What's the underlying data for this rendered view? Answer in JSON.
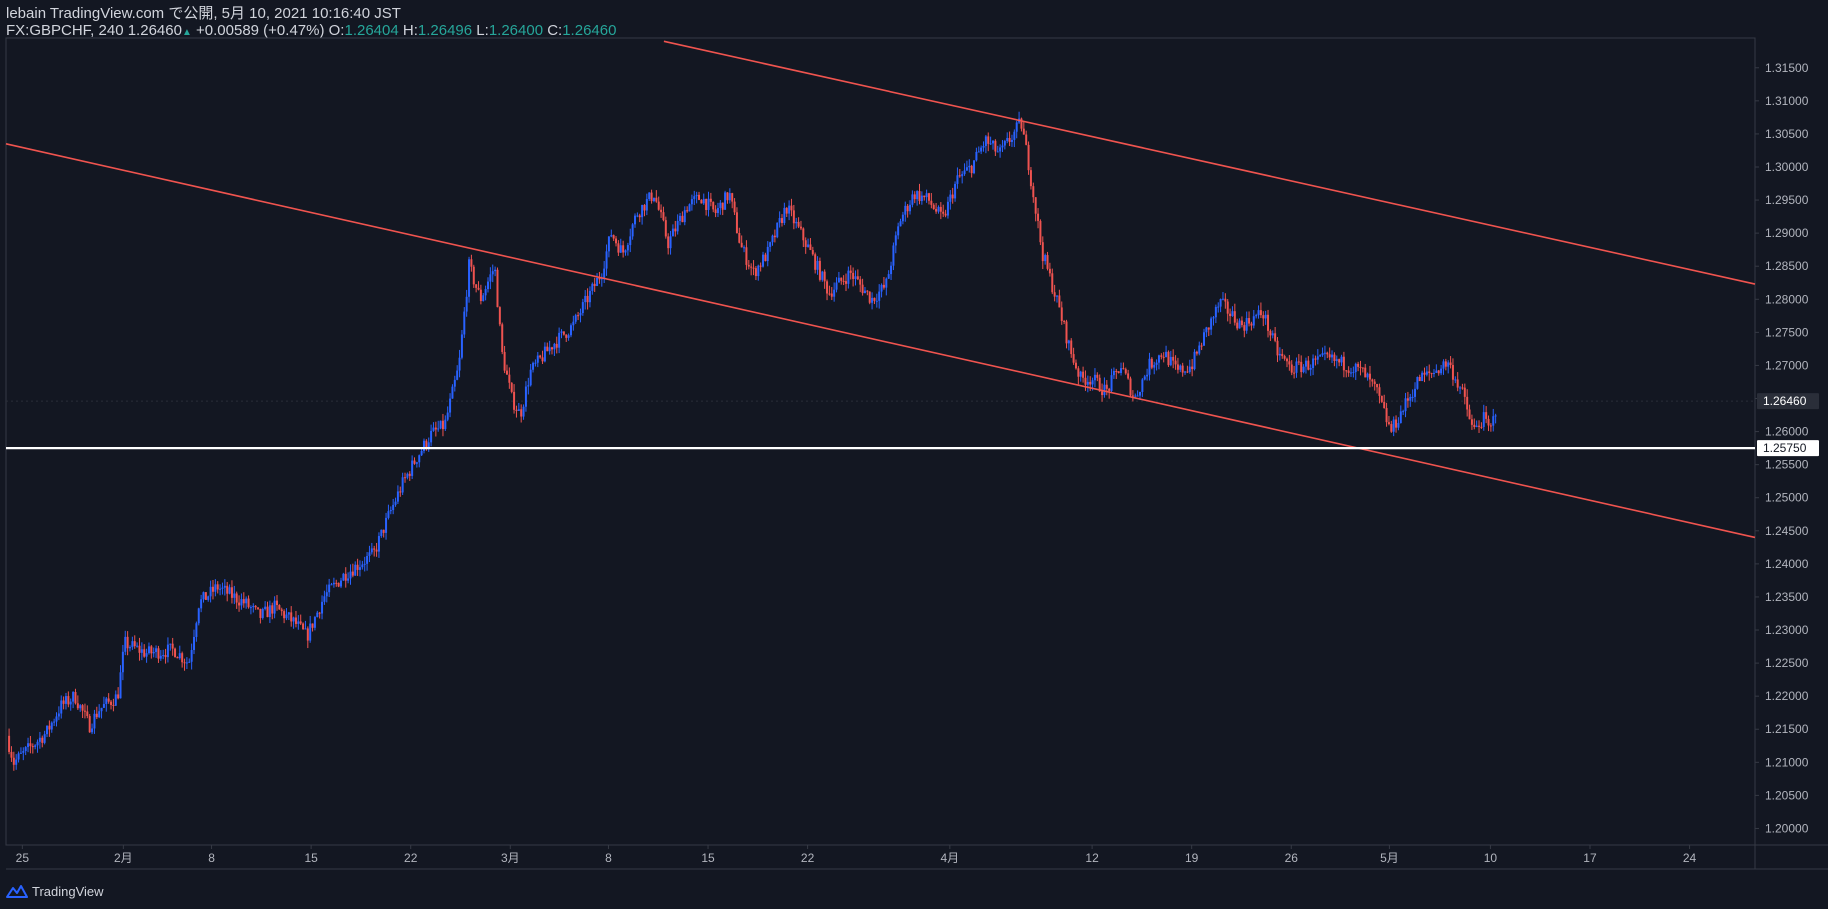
{
  "header": {
    "published_line": "lebain TradingView.com で公開, 5月 10, 2021 10:16:40 JST",
    "symbol": "FX:GBPCHF, 240",
    "last": "1.26460",
    "change": "+0.00589 (+0.47%)",
    "o_label": "O:",
    "o": "1.26404",
    "h_label": "H:",
    "h": "1.26496",
    "l_label": "L:",
    "l": "1.26400",
    "c_label": "C:",
    "c": "1.26460"
  },
  "footer": {
    "brand": "TradingView"
  },
  "colors": {
    "background": "#131722",
    "up": "#2962ff",
    "down": "#ef5350",
    "trendline": "#f0544f",
    "hline": "#ffffff",
    "axis_text": "#b2b5be",
    "header_value": "#26a69a"
  },
  "chart_data": {
    "type": "candlestick",
    "symbol": "FX:GBPCHF",
    "interval": "240",
    "ylim": [
      1.1975,
      1.3195
    ],
    "y_ticks": [
      "1.20000",
      "1.20500",
      "1.21000",
      "1.21500",
      "1.22000",
      "1.22500",
      "1.23000",
      "1.23500",
      "1.24000",
      "1.24500",
      "1.25000",
      "1.25500",
      "1.26000",
      "1.26500",
      "1.27000",
      "1.27500",
      "1.28000",
      "1.28500",
      "1.29000",
      "1.29500",
      "1.30000",
      "1.30500",
      "1.31000",
      "1.31500"
    ],
    "x_ticks": [
      {
        "label": "25",
        "day": -0.2
      },
      {
        "label": "2月",
        "day": 6.9
      },
      {
        "label": "8",
        "day": 13.1
      },
      {
        "label": "15",
        "day": 20.1
      },
      {
        "label": "22",
        "day": 27.1
      },
      {
        "label": "3月",
        "day": 34.1
      },
      {
        "label": "8",
        "day": 41.0
      },
      {
        "label": "15",
        "day": 48.0
      },
      {
        "label": "22",
        "day": 55.0
      },
      {
        "label": "4月",
        "day": 65.0
      },
      {
        "label": "12",
        "day": 75.0
      },
      {
        "label": "19",
        "day": 82.0
      },
      {
        "label": "26",
        "day": 89.0
      },
      {
        "label": "5月",
        "day": 95.9
      },
      {
        "label": "10",
        "day": 103.0
      },
      {
        "label": "17",
        "day": 110.0
      },
      {
        "label": "24",
        "day": 117.0
      }
    ],
    "x_domain_days": [
      -1.35,
      121.6
    ],
    "price_label": "1.26460",
    "horizontal_line": {
      "price": 1.2575,
      "label": "1.25750"
    },
    "trendlines": [
      {
        "p1": {
          "day": -1.35,
          "price": 1.3035
        },
        "p2": {
          "day": 121.6,
          "price": 1.244
        }
      },
      {
        "p1": {
          "day": 44.9,
          "price": 1.319
        },
        "p2": {
          "day": 121.6,
          "price": 1.2823
        }
      }
    ],
    "path_points": [
      {
        "day": -1.3,
        "price": 1.214
      },
      {
        "day": -0.8,
        "price": 1.21
      },
      {
        "day": 1.5,
        "price": 1.2145
      },
      {
        "day": 2.5,
        "price": 1.2185
      },
      {
        "day": 3.5,
        "price": 1.22
      },
      {
        "day": 4.5,
        "price": 1.2155
      },
      {
        "day": 5.2,
        "price": 1.218
      },
      {
        "day": 6.5,
        "price": 1.22
      },
      {
        "day": 7.0,
        "price": 1.228
      },
      {
        "day": 8.5,
        "price": 1.2265
      },
      {
        "day": 10.5,
        "price": 1.227
      },
      {
        "day": 11.5,
        "price": 1.225
      },
      {
        "day": 12.2,
        "price": 1.234
      },
      {
        "day": 13.5,
        "price": 1.2365
      },
      {
        "day": 15.5,
        "price": 1.234
      },
      {
        "day": 16.5,
        "price": 1.232
      },
      {
        "day": 17.5,
        "price": 1.2335
      },
      {
        "day": 19.0,
        "price": 1.231
      },
      {
        "day": 19.8,
        "price": 1.229
      },
      {
        "day": 21.0,
        "price": 1.235
      },
      {
        "day": 22.5,
        "price": 1.2385
      },
      {
        "day": 24.5,
        "price": 1.2415
      },
      {
        "day": 25.5,
        "price": 1.247
      },
      {
        "day": 26.5,
        "price": 1.252
      },
      {
        "day": 27.5,
        "price": 1.256
      },
      {
        "day": 28.5,
        "price": 1.2595
      },
      {
        "day": 29.5,
        "price": 1.261
      },
      {
        "day": 30.5,
        "price": 1.27
      },
      {
        "day": 31.2,
        "price": 1.285
      },
      {
        "day": 32.0,
        "price": 1.28
      },
      {
        "day": 33.0,
        "price": 1.285
      },
      {
        "day": 33.5,
        "price": 1.272
      },
      {
        "day": 34.2,
        "price": 1.265
      },
      {
        "day": 34.8,
        "price": 1.2625
      },
      {
        "day": 35.5,
        "price": 1.269
      },
      {
        "day": 37.0,
        "price": 1.273
      },
      {
        "day": 38.5,
        "price": 1.276
      },
      {
        "day": 39.5,
        "price": 1.28
      },
      {
        "day": 40.5,
        "price": 1.284
      },
      {
        "day": 41.2,
        "price": 1.29
      },
      {
        "day": 42.0,
        "price": 1.287
      },
      {
        "day": 43.0,
        "price": 1.293
      },
      {
        "day": 44.2,
        "price": 1.296
      },
      {
        "day": 45.2,
        "price": 1.2885
      },
      {
        "day": 46.5,
        "price": 1.294
      },
      {
        "day": 47.5,
        "price": 1.2955
      },
      {
        "day": 48.5,
        "price": 1.293
      },
      {
        "day": 49.5,
        "price": 1.296
      },
      {
        "day": 50.3,
        "price": 1.288
      },
      {
        "day": 51.2,
        "price": 1.284
      },
      {
        "day": 52.2,
        "price": 1.287
      },
      {
        "day": 53.5,
        "price": 1.294
      },
      {
        "day": 55.0,
        "price": 1.288
      },
      {
        "day": 56.5,
        "price": 1.281
      },
      {
        "day": 58.0,
        "price": 1.284
      },
      {
        "day": 59.5,
        "price": 1.28
      },
      {
        "day": 60.5,
        "price": 1.282
      },
      {
        "day": 61.5,
        "price": 1.292
      },
      {
        "day": 62.5,
        "price": 1.296
      },
      {
        "day": 63.5,
        "price": 1.295
      },
      {
        "day": 64.5,
        "price": 1.292
      },
      {
        "day": 65.5,
        "price": 1.298
      },
      {
        "day": 66.5,
        "price": 1.3
      },
      {
        "day": 67.5,
        "price": 1.304
      },
      {
        "day": 68.5,
        "price": 1.302
      },
      {
        "day": 69.5,
        "price": 1.305
      },
      {
        "day": 70.0,
        "price": 1.3068
      },
      {
        "day": 70.5,
        "price": 1.301
      },
      {
        "day": 71.0,
        "price": 1.294
      },
      {
        "day": 71.5,
        "price": 1.287
      },
      {
        "day": 72.5,
        "price": 1.28
      },
      {
        "day": 73.5,
        "price": 1.272
      },
      {
        "day": 74.2,
        "price": 1.268
      },
      {
        "day": 75.0,
        "price": 1.268
      },
      {
        "day": 76.0,
        "price": 1.266
      },
      {
        "day": 77.0,
        "price": 1.27
      },
      {
        "day": 78.0,
        "price": 1.265
      },
      {
        "day": 79.0,
        "price": 1.27
      },
      {
        "day": 80.0,
        "price": 1.272
      },
      {
        "day": 81.0,
        "price": 1.269
      },
      {
        "day": 82.0,
        "price": 1.27
      },
      {
        "day": 83.0,
        "price": 1.275
      },
      {
        "day": 84.0,
        "price": 1.2795
      },
      {
        "day": 85.5,
        "price": 1.276
      },
      {
        "day": 87.0,
        "price": 1.278
      },
      {
        "day": 88.0,
        "price": 1.272
      },
      {
        "day": 89.0,
        "price": 1.2695
      },
      {
        "day": 90.0,
        "price": 1.27
      },
      {
        "day": 91.5,
        "price": 1.271
      },
      {
        "day": 93.0,
        "price": 1.27
      },
      {
        "day": 94.0,
        "price": 1.269
      },
      {
        "day": 95.0,
        "price": 1.266
      },
      {
        "day": 96.0,
        "price": 1.26
      },
      {
        "day": 97.0,
        "price": 1.264
      },
      {
        "day": 98.0,
        "price": 1.268
      },
      {
        "day": 99.0,
        "price": 1.269
      },
      {
        "day": 100.0,
        "price": 1.2705
      },
      {
        "day": 101.0,
        "price": 1.266
      },
      {
        "day": 101.8,
        "price": 1.26
      },
      {
        "day": 102.5,
        "price": 1.262
      },
      {
        "day": 103.0,
        "price": 1.26
      },
      {
        "day": 103.5,
        "price": 1.2646
      }
    ]
  }
}
